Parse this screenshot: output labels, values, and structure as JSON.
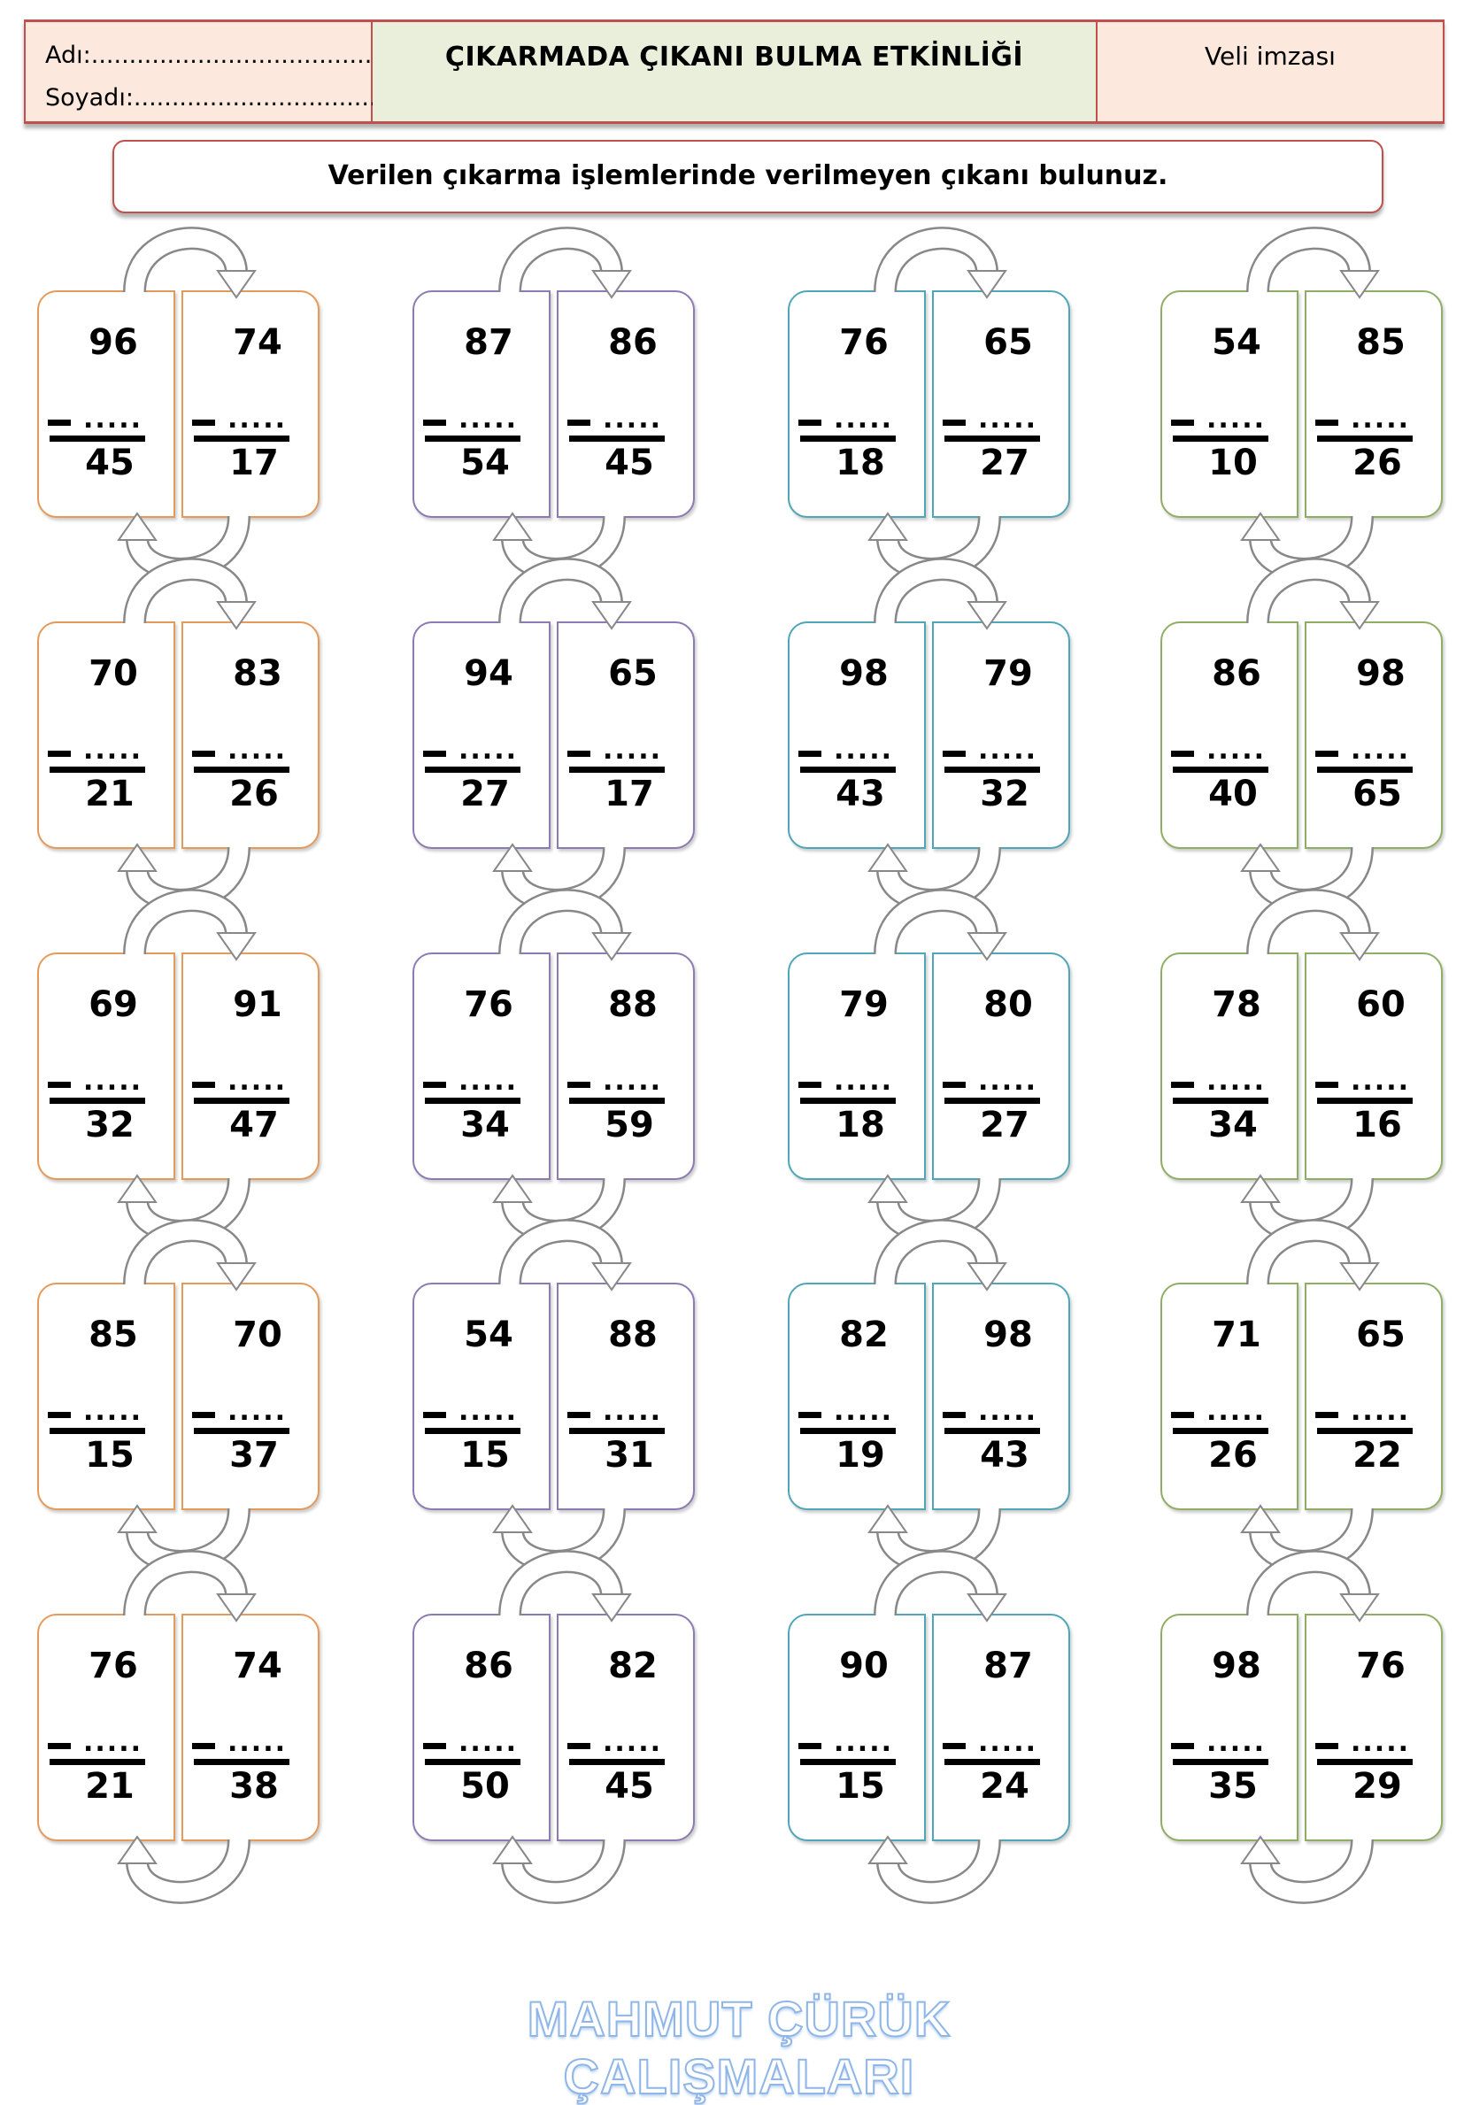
{
  "header": {
    "name_label": "Adı:........................................",
    "surname_label": "Soyadı:.................................",
    "title": "ÇIKARMADA ÇIKANI BULMA ETKİNLİĞİ",
    "signature_label": "Veli imzası"
  },
  "instruction": "Verilen çıkarma işlemlerinde verilmeyen çıkanı bulunuz.",
  "blank": ".....",
  "column_colors": [
    "#e59a5a",
    "#8c7ab3",
    "#4ea6b8",
    "#8fae63"
  ],
  "problems": [
    [
      [
        [
          96,
          45
        ],
        [
          74,
          17
        ]
      ],
      [
        [
          87,
          54
        ],
        [
          86,
          45
        ]
      ],
      [
        [
          76,
          18
        ],
        [
          65,
          27
        ]
      ],
      [
        [
          54,
          10
        ],
        [
          85,
          26
        ]
      ]
    ],
    [
      [
        [
          70,
          21
        ],
        [
          83,
          26
        ]
      ],
      [
        [
          94,
          27
        ],
        [
          65,
          17
        ]
      ],
      [
        [
          98,
          43
        ],
        [
          79,
          32
        ]
      ],
      [
        [
          86,
          40
        ],
        [
          98,
          65
        ]
      ]
    ],
    [
      [
        [
          69,
          32
        ],
        [
          91,
          47
        ]
      ],
      [
        [
          76,
          34
        ],
        [
          88,
          59
        ]
      ],
      [
        [
          79,
          18
        ],
        [
          80,
          27
        ]
      ],
      [
        [
          78,
          34
        ],
        [
          60,
          16
        ]
      ]
    ],
    [
      [
        [
          85,
          15
        ],
        [
          70,
          37
        ]
      ],
      [
        [
          54,
          15
        ],
        [
          88,
          31
        ]
      ],
      [
        [
          82,
          19
        ],
        [
          98,
          43
        ]
      ],
      [
        [
          71,
          26
        ],
        [
          65,
          22
        ]
      ]
    ],
    [
      [
        [
          76,
          21
        ],
        [
          74,
          38
        ]
      ],
      [
        [
          86,
          50
        ],
        [
          82,
          45
        ]
      ],
      [
        [
          90,
          15
        ],
        [
          87,
          24
        ]
      ],
      [
        [
          98,
          35
        ],
        [
          76,
          29
        ]
      ]
    ]
  ],
  "watermark": "MAHMUT ÇÜRÜK ÇALIŞMALARI"
}
